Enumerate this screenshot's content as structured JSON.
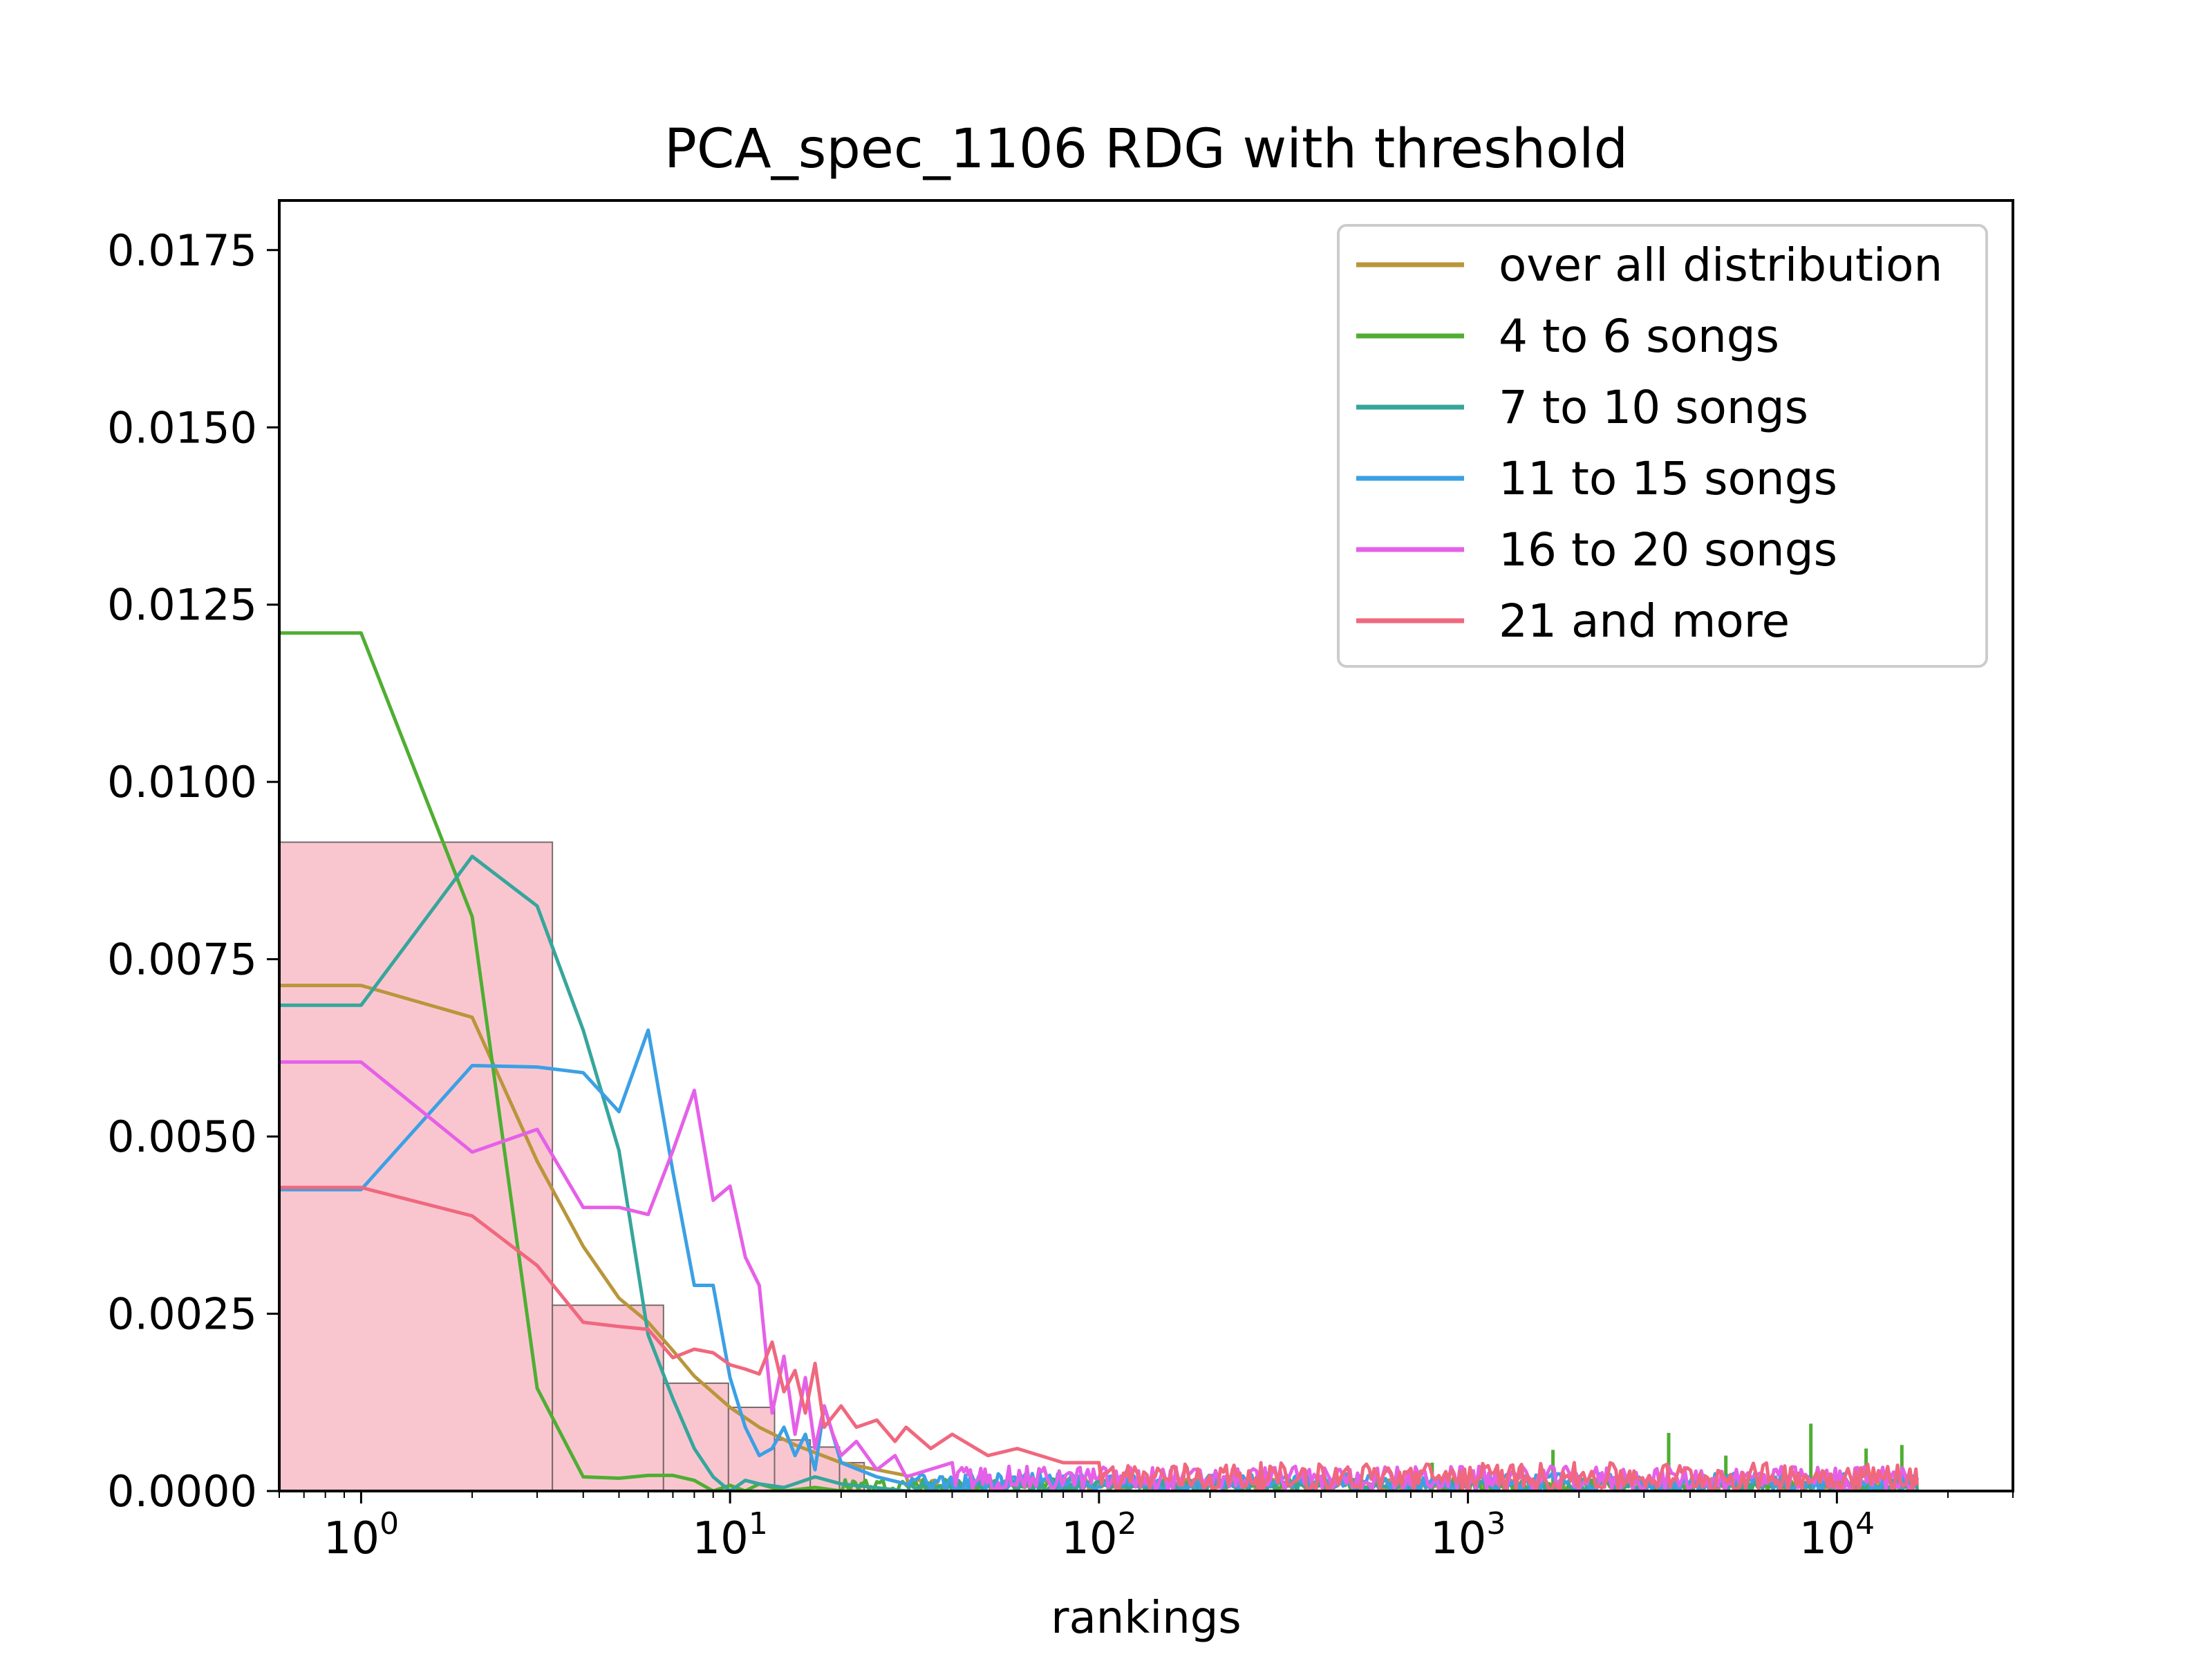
{
  "chart_data": {
    "type": "line",
    "title": "PCA_spec_1106 RDG with threshold",
    "xlabel": "rankings",
    "ylabel": "",
    "xscale": "log",
    "xlim": [
      0.6,
      30000
    ],
    "ylim": [
      0,
      0.0182
    ],
    "grid": false,
    "legend_position": "top-right",
    "yticks": [
      {
        "value": 0.0,
        "label": "0.0000"
      },
      {
        "value": 0.0025,
        "label": "0.0025"
      },
      {
        "value": 0.005,
        "label": "0.0050"
      },
      {
        "value": 0.0075,
        "label": "0.0075"
      },
      {
        "value": 0.01,
        "label": "0.0100"
      },
      {
        "value": 0.0125,
        "label": "0.0125"
      },
      {
        "value": 0.015,
        "label": "0.0150"
      },
      {
        "value": 0.0175,
        "label": "0.0175"
      }
    ],
    "xticks": [
      {
        "value": 1,
        "base": "10",
        "exp": "0"
      },
      {
        "value": 10,
        "base": "10",
        "exp": "1"
      },
      {
        "value": 100,
        "base": "10",
        "exp": "2"
      },
      {
        "value": 1000,
        "base": "10",
        "exp": "3"
      },
      {
        "value": 10000,
        "base": "10",
        "exp": "4"
      }
    ],
    "histogram": {
      "color": "#f9c6d0",
      "edge_color": "#7a6a6a",
      "bins": [
        {
          "x0": 0.6,
          "x1": 3.3,
          "value": 0.00915
        },
        {
          "x0": 3.3,
          "x1": 6.6,
          "value": 0.00262
        },
        {
          "x0": 6.6,
          "x1": 9.9,
          "value": 0.00152
        },
        {
          "x0": 9.9,
          "x1": 13.2,
          "value": 0.00118
        },
        {
          "x0": 13.2,
          "x1": 16.5,
          "value": 0.00072
        },
        {
          "x0": 16.5,
          "x1": 19.8,
          "value": 0.00062
        },
        {
          "x0": 19.8,
          "x1": 23.1,
          "value": 0.0004
        }
      ]
    },
    "series": [
      {
        "name": "over all distribution",
        "color": "#b9963b",
        "x": [
          0.6,
          1,
          2,
          3,
          4,
          5,
          6,
          7,
          8,
          10,
          12,
          15,
          20,
          25,
          30
        ],
        "y": [
          0.00713,
          0.00713,
          0.00668,
          0.00465,
          0.00345,
          0.00272,
          0.00238,
          0.00198,
          0.00162,
          0.00118,
          0.0009,
          0.00065,
          0.0004,
          0.0003,
          0.00022
        ],
        "tail_max": 0.00018
      },
      {
        "name": "4 to 6 songs",
        "color": "#4fae32",
        "x": [
          0.6,
          1,
          2,
          3,
          4,
          5,
          6,
          7,
          8,
          9,
          10,
          11,
          12,
          14,
          17,
          20
        ],
        "y": [
          0.0121,
          0.0121,
          0.0081,
          0.00145,
          0.0002,
          0.00018,
          0.00022,
          0.00022,
          0.00015,
          0.0,
          8e-05,
          0.0,
          0.0001,
          0.0,
          5e-05,
          0.0
        ],
        "tail_max": 0.00018,
        "spikes": [
          [
            800,
            0.0004
          ],
          [
            1700,
            0.00058
          ],
          [
            3500,
            0.00082
          ],
          [
            5000,
            0.0005
          ],
          [
            8500,
            0.00095
          ],
          [
            12000,
            0.0006
          ],
          [
            15000,
            0.00065
          ]
        ]
      },
      {
        "name": "7 to 10 songs",
        "color": "#36a69b",
        "x": [
          0.6,
          1,
          2,
          3,
          4,
          5,
          6,
          7,
          8,
          9,
          10,
          11,
          12,
          14,
          17,
          20,
          30
        ],
        "y": [
          0.00685,
          0.00685,
          0.00895,
          0.00825,
          0.0065,
          0.0048,
          0.0022,
          0.0013,
          0.0006,
          0.0002,
          0.0,
          0.00015,
          0.0001,
          5e-05,
          0.0002,
          0.0001,
          0.0
        ],
        "tail_max": 0.00015
      },
      {
        "name": "11 to 15 songs",
        "color": "#3ca0e4",
        "x": [
          0.6,
          1,
          2,
          3,
          4,
          5,
          6,
          7,
          8,
          9,
          10,
          11,
          12,
          13,
          14,
          15,
          16,
          17,
          18,
          20,
          25,
          30
        ],
        "y": [
          0.00425,
          0.00425,
          0.006,
          0.00598,
          0.0059,
          0.00535,
          0.0065,
          0.0045,
          0.0029,
          0.0029,
          0.0016,
          0.0009,
          0.0005,
          0.0006,
          0.0009,
          0.0005,
          0.0008,
          0.0003,
          0.0012,
          0.0004,
          0.0002,
          0.0001
        ],
        "tail_max": 0.00025
      },
      {
        "name": "16 to 20 songs",
        "color": "#e560e8",
        "x": [
          0.6,
          1,
          2,
          3,
          4,
          5,
          6,
          7,
          8,
          9,
          10,
          11,
          12,
          13,
          14,
          15,
          16,
          17,
          18,
          19,
          20,
          22,
          25,
          28,
          30,
          40
        ],
        "y": [
          0.00605,
          0.00605,
          0.00478,
          0.0051,
          0.004,
          0.004,
          0.0039,
          0.0048,
          0.00565,
          0.0041,
          0.0043,
          0.0033,
          0.0029,
          0.0011,
          0.0019,
          0.0008,
          0.0016,
          0.0006,
          0.0012,
          0.0008,
          0.0005,
          0.0007,
          0.0003,
          0.0005,
          0.0002,
          0.0004
        ],
        "tail_max": 0.00035
      },
      {
        "name": "21 and more",
        "color": "#f0687e",
        "x": [
          0.6,
          1,
          2,
          3,
          4,
          5,
          6,
          7,
          8,
          9,
          10,
          11,
          12,
          13,
          14,
          15,
          16,
          17,
          18,
          20,
          22,
          25,
          28,
          30,
          35,
          40,
          50,
          60,
          80,
          100
        ],
        "y": [
          0.00428,
          0.00428,
          0.00388,
          0.00318,
          0.00238,
          0.00232,
          0.00228,
          0.00188,
          0.002,
          0.00195,
          0.00178,
          0.00172,
          0.00165,
          0.0021,
          0.0014,
          0.0017,
          0.0011,
          0.0018,
          0.0009,
          0.0012,
          0.0009,
          0.001,
          0.0007,
          0.0009,
          0.0006,
          0.0008,
          0.0005,
          0.0006,
          0.0004,
          0.0004
        ],
        "tail_max": 0.0004
      }
    ]
  }
}
